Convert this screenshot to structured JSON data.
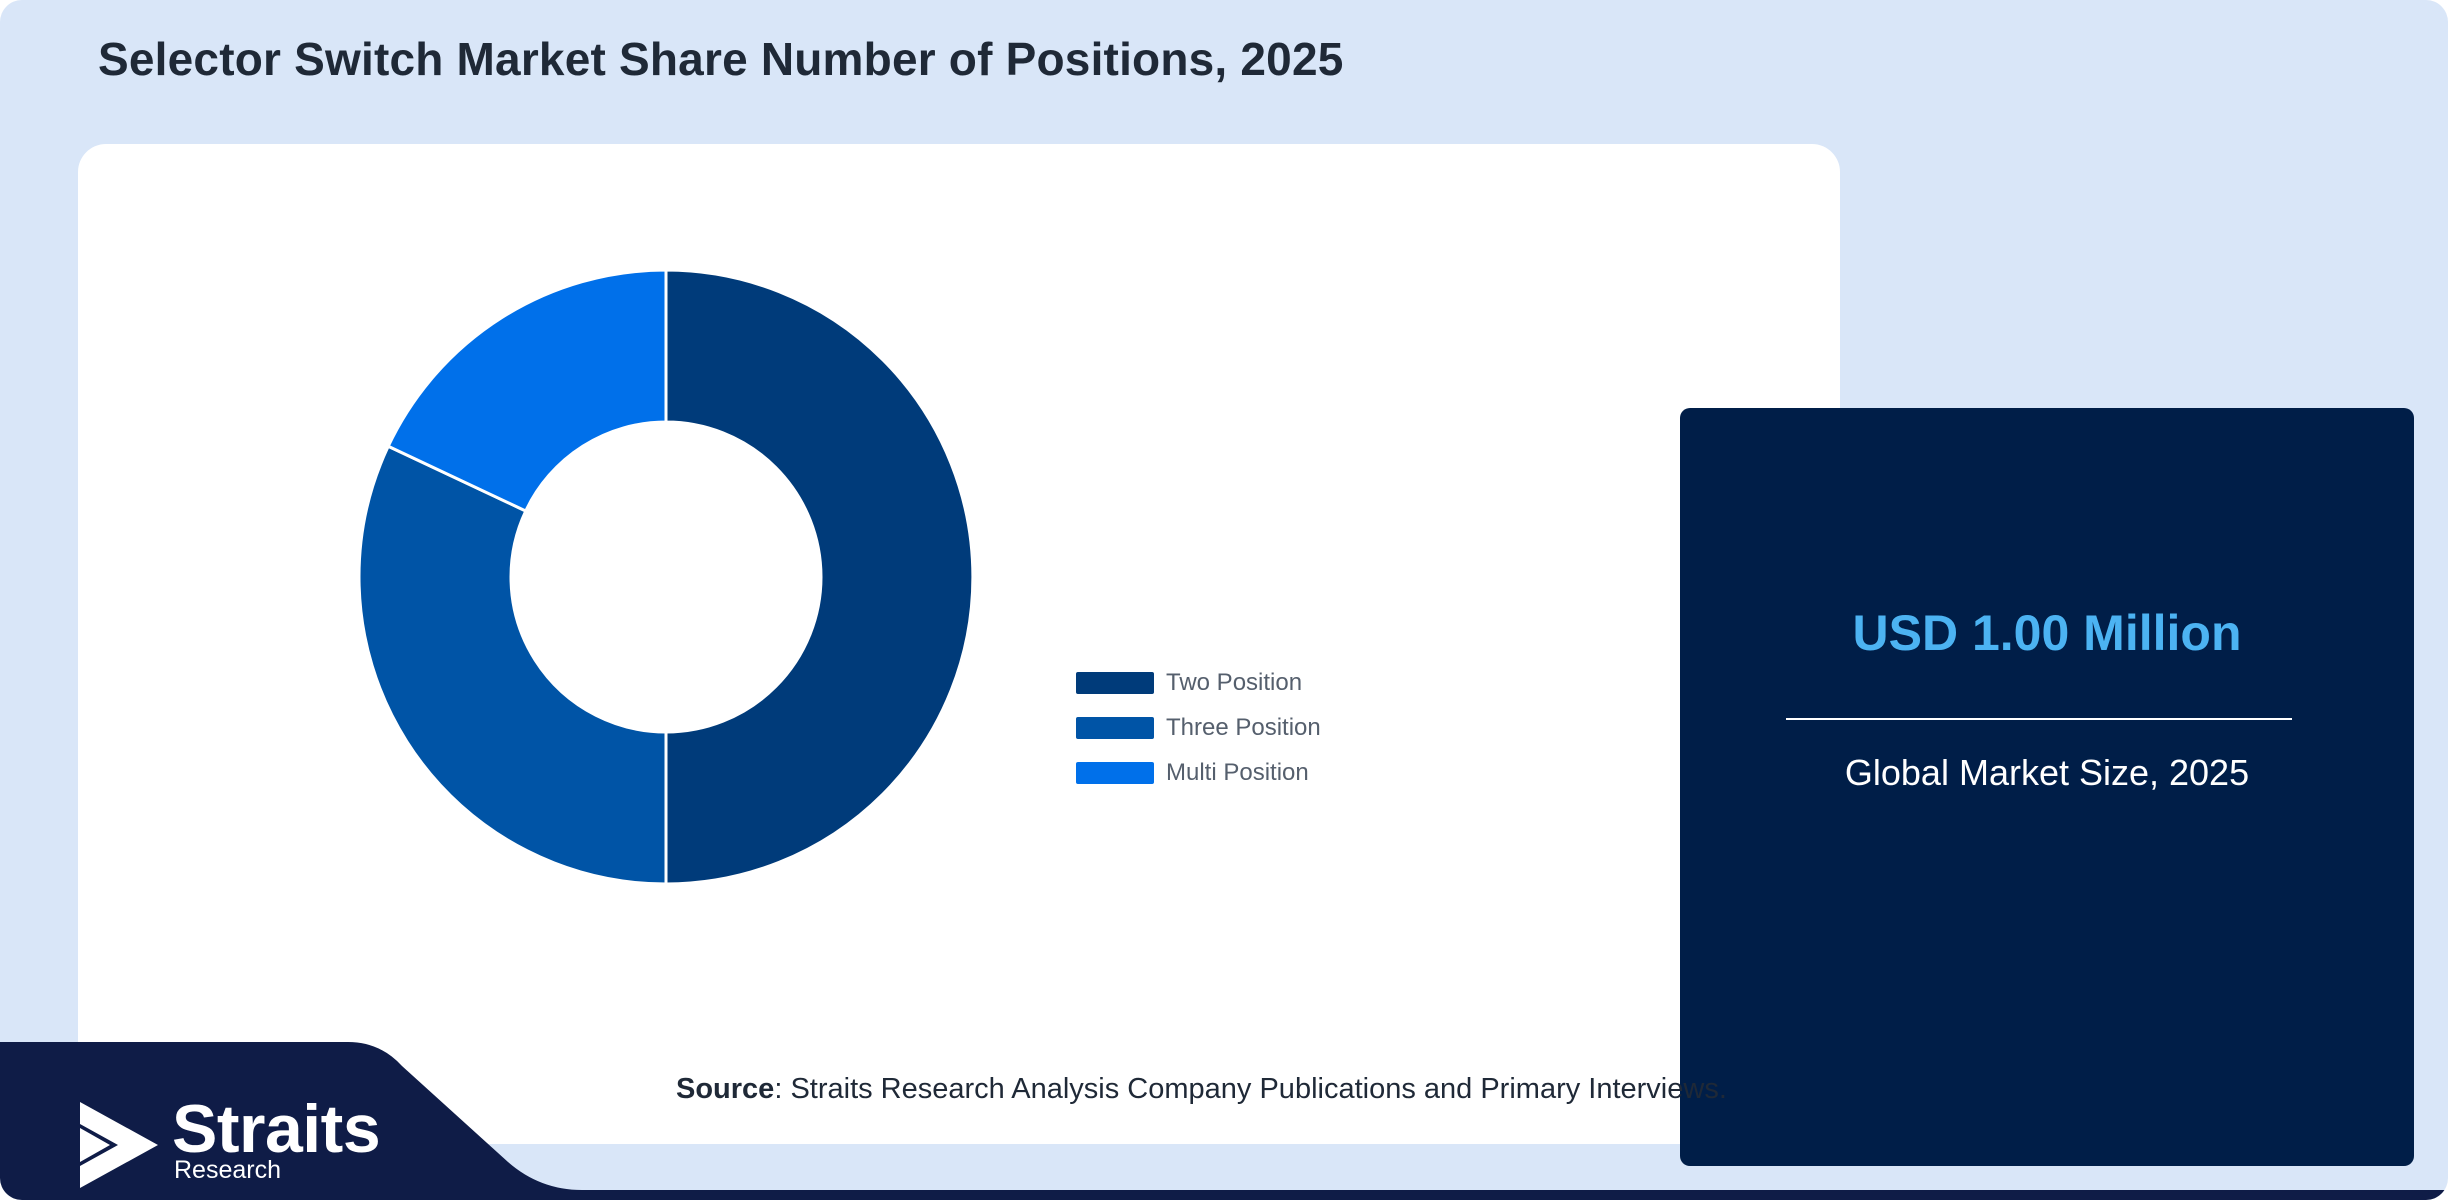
{
  "title": "Selector Switch Market Share Number of Positions, 2025",
  "colors": {
    "page_background": "#d9e6f8",
    "card_background": "#001e48",
    "accent_value": "#4cb3f2",
    "footer_navy": "#0f1c47"
  },
  "chart_data": {
    "type": "pie",
    "variant": "donut",
    "title": "",
    "legend_position": "right",
    "categories": [
      "Two Position",
      "Three Position",
      "Multi Position"
    ],
    "values": [
      50,
      32,
      18
    ],
    "colors": [
      "#003b7a",
      "#0054a6",
      "#0070ea"
    ]
  },
  "market": {
    "value": "USD 1.00 Million",
    "label": "Global Market Size, 2025"
  },
  "source": {
    "prefix": "Source",
    "text": ": Straits Research Analysis Company Publications and Primary Interviews."
  },
  "logo": {
    "word": "Straits",
    "sub": "Research"
  }
}
